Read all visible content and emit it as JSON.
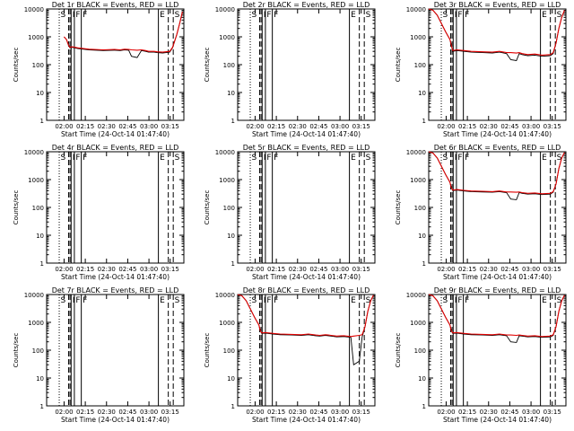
{
  "chart_data": {
    "type": "line",
    "shared": {
      "xlabel": "Start Time (24-Oct-14 01:47:40)",
      "ylabel": "Counts/sec",
      "x_tick_labels": [
        "02:00",
        "02:15",
        "02:30",
        "02:45",
        "03:00",
        "03:15"
      ],
      "x_tick_minutes": [
        12.33,
        27.33,
        42.33,
        57.33,
        72.33,
        87.33
      ],
      "x_range_minutes": [
        0,
        97
      ],
      "series_legend": "BLACK = Events, RED = LLD",
      "colors": {
        "events": "#000000",
        "lld": "#e00000"
      },
      "event_markers": [
        {
          "label": "S",
          "minute": 8.9,
          "style": "dotted"
        },
        {
          "label": "",
          "minute": 15.5,
          "style": "dashed"
        },
        {
          "label": "",
          "minute": 16.5,
          "style": "dashed"
        },
        {
          "label": "I",
          "minute": 17.3,
          "style": "solid"
        },
        {
          "label": "F",
          "minute": 19.6,
          "style": "solid"
        },
        {
          "label": "F",
          "minute": 24.5,
          "style": "solid"
        },
        {
          "label": "E",
          "minute": 79.0,
          "style": "solid"
        },
        {
          "label": "",
          "minute": 86.0,
          "style": "dashed"
        },
        {
          "label": "S",
          "minute": 89.5,
          "style": "dashed"
        }
      ]
    },
    "panels": [
      {
        "title": "Det 1r BLACK = Events, RED = LLD",
        "yscale": "log",
        "ylim": [
          1,
          10000
        ],
        "y_tick_labels": [
          "1",
          "10",
          "100",
          "1000",
          "10000"
        ],
        "has_data": true,
        "events": {
          "x": [
            12.3,
            14,
            15.5,
            16.5,
            18,
            22,
            30,
            40,
            48,
            52,
            55,
            58,
            60,
            64,
            67,
            70,
            72,
            76,
            78,
            82,
            87,
            89,
            92,
            94,
            96
          ],
          "y": [
            1000,
            800,
            500,
            400,
            420,
            380,
            340,
            320,
            330,
            320,
            340,
            330,
            200,
            180,
            320,
            300,
            280,
            280,
            270,
            260,
            280,
            400,
            1200,
            3000,
            8000
          ]
        },
        "lld": {
          "x": [
            12.3,
            14,
            15.5,
            16.5,
            18,
            22,
            30,
            40,
            48,
            52,
            55,
            58,
            60,
            64,
            67,
            70,
            72,
            76,
            78,
            82,
            87,
            89,
            92,
            94,
            96
          ],
          "y": [
            1000,
            800,
            500,
            420,
            440,
            400,
            360,
            340,
            350,
            340,
            360,
            350,
            340,
            330,
            340,
            320,
            300,
            300,
            290,
            280,
            300,
            420,
            1200,
            3000,
            8000
          ]
        }
      },
      {
        "title": "Det 2r BLACK = Events, RED = LLD",
        "yscale": "log",
        "ylim": [
          1,
          10000
        ],
        "y_tick_labels": [
          "1",
          "10",
          "100",
          "1000",
          "10000"
        ],
        "has_data": false
      },
      {
        "title": "Det 3r BLACK = Events, RED = LLD",
        "yscale": "log",
        "ylim": [
          1,
          10000
        ],
        "y_tick_labels": [
          "1",
          "10",
          "100",
          "1000",
          "10000"
        ],
        "has_data": true,
        "events": {
          "x": [
            0,
            3,
            6,
            9,
            12,
            15,
            16,
            17,
            20,
            25,
            30,
            38,
            45,
            50,
            55,
            58,
            62,
            64,
            66,
            70,
            75,
            80,
            86,
            88,
            90,
            92,
            94,
            96
          ],
          "y": [
            10000,
            9000,
            6000,
            3000,
            1500,
            800,
            500,
            300,
            320,
            300,
            280,
            270,
            260,
            280,
            250,
            150,
            140,
            250,
            230,
            210,
            220,
            200,
            210,
            250,
            600,
            2000,
            5000,
            9000
          ]
        },
        "lld": {
          "x": [
            0,
            3,
            6,
            9,
            12,
            15,
            16,
            17,
            20,
            25,
            30,
            38,
            45,
            50,
            55,
            58,
            62,
            64,
            66,
            70,
            75,
            80,
            86,
            88,
            90,
            92,
            94,
            96
          ],
          "y": [
            10000,
            9000,
            6000,
            3000,
            1500,
            800,
            500,
            320,
            340,
            320,
            300,
            290,
            280,
            300,
            270,
            270,
            260,
            270,
            250,
            230,
            240,
            220,
            230,
            270,
            600,
            2000,
            5000,
            9000
          ]
        }
      },
      {
        "title": "Det 4r BLACK = Events, RED = LLD",
        "yscale": "log",
        "ylim": [
          1,
          10000
        ],
        "y_tick_labels": [
          "1",
          "10",
          "100",
          "1000",
          "10000"
        ],
        "has_data": false
      },
      {
        "title": "Det 5r BLACK = Events, RED = LLD",
        "yscale": "log",
        "ylim": [
          1,
          10000
        ],
        "y_tick_labels": [
          "1",
          "10",
          "100",
          "1000",
          "10000"
        ],
        "has_data": false
      },
      {
        "title": "Det 6r BLACK = Events, RED = LLD",
        "yscale": "log",
        "ylim": [
          1,
          10000
        ],
        "y_tick_labels": [
          "1",
          "10",
          "100",
          "1000",
          "10000"
        ],
        "has_data": true,
        "events": {
          "x": [
            0,
            3,
            6,
            9,
            12,
            15,
            16,
            17,
            20,
            25,
            30,
            38,
            45,
            50,
            55,
            58,
            62,
            64,
            66,
            70,
            75,
            80,
            86,
            88,
            90,
            92,
            94,
            96
          ],
          "y": [
            10000,
            9000,
            6000,
            3000,
            1500,
            800,
            500,
            400,
            420,
            390,
            370,
            360,
            350,
            370,
            340,
            200,
            190,
            340,
            320,
            300,
            310,
            290,
            300,
            350,
            700,
            2500,
            6000,
            9500
          ]
        },
        "lld": {
          "x": [
            0,
            3,
            6,
            9,
            12,
            15,
            16,
            17,
            20,
            25,
            30,
            38,
            45,
            50,
            55,
            58,
            62,
            64,
            66,
            70,
            75,
            80,
            86,
            88,
            90,
            92,
            94,
            96
          ],
          "y": [
            10000,
            9000,
            6000,
            3000,
            1500,
            800,
            500,
            420,
            440,
            410,
            390,
            380,
            370,
            390,
            360,
            360,
            350,
            360,
            340,
            320,
            330,
            310,
            320,
            370,
            700,
            2500,
            6000,
            9500
          ]
        }
      },
      {
        "title": "Det 7r BLACK = Events, RED = LLD",
        "yscale": "log",
        "ylim": [
          1,
          10000
        ],
        "y_tick_labels": [
          "1",
          "10",
          "100",
          "1000",
          "10000"
        ],
        "has_data": false
      },
      {
        "title": "Det 8r BLACK = Events, RED = LLD",
        "yscale": "log",
        "ylim": [
          1,
          10000
        ],
        "y_tick_labels": [
          "1",
          "10",
          "100",
          "1000",
          "10000"
        ],
        "has_data": true,
        "events": {
          "x": [
            0,
            3,
            6,
            9,
            12,
            15,
            16,
            17,
            20,
            25,
            30,
            38,
            45,
            50,
            55,
            58,
            62,
            64,
            66,
            70,
            75,
            80,
            82,
            86,
            88,
            90,
            92,
            94,
            96
          ],
          "y": [
            10000,
            9000,
            6000,
            3000,
            1500,
            800,
            500,
            400,
            410,
            380,
            360,
            350,
            340,
            360,
            330,
            320,
            340,
            330,
            320,
            300,
            310,
            290,
            30,
            40,
            300,
            700,
            2500,
            6000,
            9500
          ]
        },
        "lld": {
          "x": [
            0,
            3,
            6,
            9,
            12,
            15,
            16,
            17,
            20,
            25,
            30,
            38,
            45,
            50,
            55,
            58,
            62,
            64,
            66,
            70,
            75,
            80,
            82,
            86,
            88,
            90,
            92,
            94,
            96
          ],
          "y": [
            10000,
            9000,
            6000,
            3000,
            1500,
            800,
            500,
            420,
            430,
            400,
            380,
            370,
            360,
            380,
            350,
            340,
            360,
            350,
            340,
            320,
            330,
            310,
            320,
            340,
            360,
            700,
            2500,
            6000,
            9500
          ]
        }
      },
      {
        "title": "Det 9r BLACK = Events, RED = LLD",
        "yscale": "log",
        "ylim": [
          1,
          10000
        ],
        "y_tick_labels": [
          "1",
          "10",
          "100",
          "1000",
          "10000"
        ],
        "has_data": true,
        "events": {
          "x": [
            0,
            3,
            6,
            9,
            12,
            15,
            16,
            17,
            20,
            25,
            30,
            38,
            45,
            50,
            55,
            58,
            62,
            64,
            66,
            70,
            75,
            80,
            86,
            88,
            90,
            92,
            94,
            96
          ],
          "y": [
            10000,
            9000,
            6000,
            3000,
            1500,
            800,
            500,
            400,
            410,
            380,
            360,
            350,
            340,
            360,
            330,
            200,
            190,
            330,
            320,
            300,
            310,
            290,
            300,
            340,
            700,
            2500,
            6000,
            9500
          ]
        },
        "lld": {
          "x": [
            0,
            3,
            6,
            9,
            12,
            15,
            16,
            17,
            20,
            25,
            30,
            38,
            45,
            50,
            55,
            58,
            62,
            64,
            66,
            70,
            75,
            80,
            86,
            88,
            90,
            92,
            94,
            96
          ],
          "y": [
            10000,
            9000,
            6000,
            3000,
            1500,
            800,
            500,
            420,
            430,
            400,
            380,
            370,
            360,
            380,
            350,
            350,
            340,
            350,
            340,
            320,
            330,
            310,
            320,
            360,
            700,
            2500,
            6000,
            9500
          ]
        }
      }
    ]
  }
}
